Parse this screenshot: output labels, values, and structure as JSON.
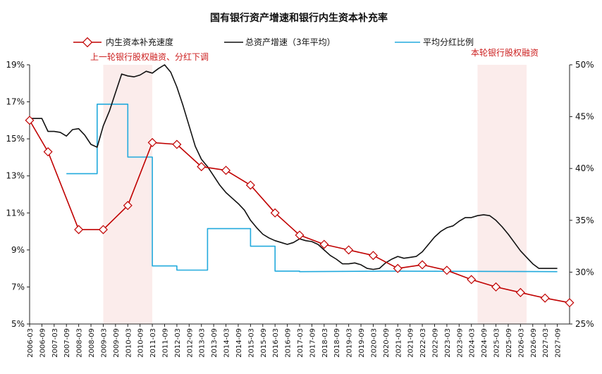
{
  "chart_data": {
    "type": "line",
    "title": "国有银行资产增速和银行内生资本补充率",
    "y_left": {
      "min": 5,
      "max": 19,
      "ticks": [
        5,
        7,
        9,
        11,
        13,
        15,
        17,
        19
      ],
      "tick_labels": [
        "5%",
        "7%",
        "9%",
        "11%",
        "13%",
        "15%",
        "17%",
        "19%"
      ]
    },
    "y_right": {
      "min": 25,
      "max": 50,
      "ticks": [
        25,
        30,
        35,
        40,
        45,
        50
      ],
      "tick_labels": [
        "25%",
        "30%",
        "35%",
        "40%",
        "45%",
        "50%"
      ]
    },
    "x_ticks": [
      "2006-03",
      "2006-09",
      "2007-03",
      "2007-09",
      "2008-03",
      "2008-09",
      "2009-03",
      "2009-09",
      "2010-03",
      "2010-09",
      "2011-03",
      "2011-09",
      "2012-03",
      "2012-09",
      "2013-03",
      "2013-09",
      "2014-03",
      "2014-09",
      "2015-03",
      "2015-09",
      "2016-03",
      "2016-09",
      "2017-03",
      "2017-09",
      "2018-03",
      "2018-09",
      "2019-03",
      "2019-09",
      "2020-03",
      "2020-09",
      "2021-03",
      "2021-09",
      "2022-03",
      "2022-09",
      "2023-03",
      "2023-09",
      "2024-03",
      "2024-09",
      "2025-03",
      "2025-09",
      "2026-03",
      "2026-09",
      "2027-03",
      "2027-09"
    ],
    "shaded_regions": [
      {
        "start": 2009.0,
        "end": 2011.0,
        "label": "上一轮银行股权融资、分红下调"
      },
      {
        "start": 2024.25,
        "end": 2026.25,
        "label": "本轮银行股权融资"
      }
    ],
    "series": [
      {
        "name": "内生资本补充速度",
        "axis": "left",
        "color": "#c00000",
        "marker": "diamond",
        "points": [
          [
            2006.0,
            16.0
          ],
          [
            2006.75,
            14.3
          ],
          [
            2008.0,
            10.1
          ],
          [
            2009.0,
            10.1
          ],
          [
            2010.0,
            11.4
          ],
          [
            2011.0,
            14.8
          ],
          [
            2012.0,
            14.7
          ],
          [
            2013.0,
            13.5
          ],
          [
            2014.0,
            13.3
          ],
          [
            2015.0,
            12.5
          ],
          [
            2016.0,
            11.0
          ],
          [
            2017.0,
            9.8
          ],
          [
            2018.0,
            9.3
          ],
          [
            2019.0,
            9.0
          ],
          [
            2020.0,
            8.7
          ],
          [
            2021.0,
            8.0
          ],
          [
            2022.0,
            8.2
          ],
          [
            2023.0,
            7.9
          ],
          [
            2024.0,
            7.4
          ],
          [
            2025.0,
            7.0
          ],
          [
            2026.0,
            6.7
          ],
          [
            2027.0,
            6.4
          ],
          [
            2028.0,
            6.15
          ]
        ]
      },
      {
        "name": "总资产增速（3年平均）",
        "axis": "left",
        "color": "#111111",
        "marker": "none",
        "points": [
          [
            2006.0,
            16.1
          ],
          [
            2006.25,
            16.1
          ],
          [
            2006.5,
            16.1
          ],
          [
            2006.75,
            15.4
          ],
          [
            2007.0,
            15.4
          ],
          [
            2007.25,
            15.35
          ],
          [
            2007.5,
            15.15
          ],
          [
            2007.75,
            15.5
          ],
          [
            2008.0,
            15.55
          ],
          [
            2008.25,
            15.2
          ],
          [
            2008.5,
            14.7
          ],
          [
            2008.75,
            14.55
          ],
          [
            2009.0,
            15.7
          ],
          [
            2009.25,
            16.5
          ],
          [
            2009.5,
            17.5
          ],
          [
            2009.75,
            18.5
          ],
          [
            2010.0,
            18.4
          ],
          [
            2010.25,
            18.35
          ],
          [
            2010.5,
            18.45
          ],
          [
            2010.75,
            18.65
          ],
          [
            2011.0,
            18.55
          ],
          [
            2011.25,
            18.8
          ],
          [
            2011.5,
            19.0
          ],
          [
            2011.75,
            18.6
          ],
          [
            2012.0,
            17.8
          ],
          [
            2012.25,
            16.8
          ],
          [
            2012.5,
            15.7
          ],
          [
            2012.75,
            14.6
          ],
          [
            2013.0,
            13.9
          ],
          [
            2013.25,
            13.5
          ],
          [
            2013.5,
            13.0
          ],
          [
            2013.75,
            12.5
          ],
          [
            2014.0,
            12.1
          ],
          [
            2014.25,
            11.8
          ],
          [
            2014.5,
            11.5
          ],
          [
            2014.75,
            11.15
          ],
          [
            2015.0,
            10.6
          ],
          [
            2015.25,
            10.2
          ],
          [
            2015.5,
            9.85
          ],
          [
            2015.75,
            9.65
          ],
          [
            2016.0,
            9.5
          ],
          [
            2016.25,
            9.4
          ],
          [
            2016.5,
            9.3
          ],
          [
            2016.75,
            9.4
          ],
          [
            2017.0,
            9.6
          ],
          [
            2017.25,
            9.5
          ],
          [
            2017.5,
            9.45
          ],
          [
            2017.75,
            9.3
          ],
          [
            2018.0,
            9.0
          ],
          [
            2018.25,
            8.7
          ],
          [
            2018.5,
            8.5
          ],
          [
            2018.75,
            8.25
          ],
          [
            2019.0,
            8.25
          ],
          [
            2019.25,
            8.3
          ],
          [
            2019.5,
            8.2
          ],
          [
            2019.75,
            8.0
          ],
          [
            2020.0,
            7.95
          ],
          [
            2020.25,
            8.0
          ],
          [
            2020.5,
            8.3
          ],
          [
            2020.75,
            8.5
          ],
          [
            2021.0,
            8.65
          ],
          [
            2021.25,
            8.55
          ],
          [
            2021.5,
            8.6
          ],
          [
            2021.75,
            8.65
          ],
          [
            2022.0,
            8.9
          ],
          [
            2022.25,
            9.3
          ],
          [
            2022.5,
            9.7
          ],
          [
            2022.75,
            10.0
          ],
          [
            2023.0,
            10.2
          ],
          [
            2023.25,
            10.3
          ],
          [
            2023.5,
            10.55
          ],
          [
            2023.75,
            10.75
          ],
          [
            2024.0,
            10.75
          ],
          [
            2024.25,
            10.85
          ],
          [
            2024.5,
            10.9
          ],
          [
            2024.75,
            10.85
          ],
          [
            2025.0,
            10.6
          ],
          [
            2025.25,
            10.25
          ],
          [
            2025.5,
            9.85
          ],
          [
            2025.75,
            9.4
          ],
          [
            2026.0,
            8.95
          ],
          [
            2026.25,
            8.6
          ],
          [
            2026.5,
            8.25
          ],
          [
            2026.75,
            8.0
          ],
          [
            2027.0,
            8.0
          ],
          [
            2027.25,
            8.0
          ],
          [
            2027.5,
            8.0
          ]
        ]
      },
      {
        "name": "平均分红比例",
        "axis": "right",
        "color": "#22aadd",
        "marker": "none",
        "points": [
          [
            2007.5,
            39.5
          ],
          [
            2008.75,
            39.5
          ],
          [
            2008.75,
            46.2
          ],
          [
            2010.0,
            46.2
          ],
          [
            2010.0,
            41.1
          ],
          [
            2011.0,
            41.1
          ],
          [
            2011.0,
            30.6
          ],
          [
            2012.0,
            30.6
          ],
          [
            2012.0,
            30.2
          ],
          [
            2013.25,
            30.2
          ],
          [
            2013.25,
            34.2
          ],
          [
            2015.0,
            34.2
          ],
          [
            2015.0,
            32.5
          ],
          [
            2016.0,
            32.5
          ],
          [
            2016.0,
            30.1
          ],
          [
            2017.0,
            30.1
          ],
          [
            2017.0,
            30.05
          ],
          [
            2020.5,
            30.1
          ],
          [
            2027.5,
            30.05
          ]
        ]
      }
    ]
  }
}
